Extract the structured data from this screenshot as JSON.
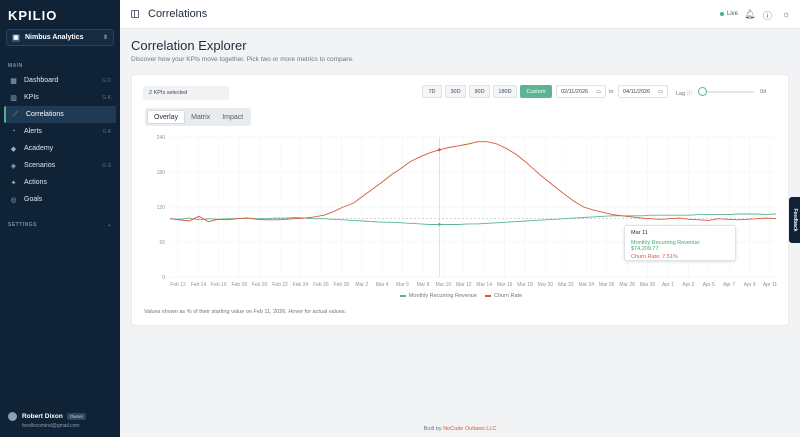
{
  "sidebar": {
    "logo": "KPILIO",
    "org_name": "Nimbus Analytics",
    "main_label": "MAIN",
    "items": [
      {
        "label": "Dashboard",
        "icon": "grid-icon",
        "glyph": "▦",
        "kbd": "G D"
      },
      {
        "label": "KPIs",
        "icon": "bar-chart-icon",
        "glyph": "▥",
        "kbd": "G K"
      },
      {
        "label": "Correlations",
        "icon": "line-chart-icon",
        "glyph": "⟋",
        "kbd": ""
      },
      {
        "label": "Alerts",
        "icon": "bell-icon",
        "glyph": "◔",
        "kbd": "G A"
      },
      {
        "label": "Academy",
        "icon": "graduation-cap-icon",
        "glyph": "◆",
        "kbd": ""
      },
      {
        "label": "Scenarios",
        "icon": "layers-icon",
        "glyph": "◈",
        "kbd": "G S"
      },
      {
        "label": "Actions",
        "icon": "bolt-icon",
        "glyph": "✦",
        "kbd": ""
      },
      {
        "label": "Goals",
        "icon": "target-icon",
        "glyph": "◎",
        "kbd": ""
      }
    ],
    "settings_label": "SETTINGS",
    "user": {
      "name": "Robert Dixon",
      "role": "Owner",
      "email": "feedlocomind@gmail.com"
    }
  },
  "topbar": {
    "title": "Correlations",
    "live": "Live"
  },
  "main": {
    "title": "Correlation Explorer",
    "subtitle": "Discover how your KPIs move together. Pick two or more metrics to compare.",
    "kpi_select": "2 KPIs selected",
    "ranges": [
      "7D",
      "30D",
      "90D",
      "180D",
      "Custom"
    ],
    "active_range": "Custom",
    "date_from": "02/11/2026",
    "to_label": "to",
    "date_to": "04/11/2026",
    "lag_label": "Lag ⓘ",
    "lag_value": "0d",
    "tabs": [
      "Overlay",
      "Matrix",
      "Impact"
    ],
    "footnote": "Values shown as % of their starting value on Feb 11, 2026. Hover for actual values."
  },
  "tooltip": {
    "date": "Mar 11",
    "mrr": "Monthly Recurring Revenue: $74,209.77",
    "churn": "Churn Rate: 7.51%"
  },
  "feedback_label": "Feedback",
  "footer": {
    "prefix": "Built by ",
    "link": "NoCode Outlaws LLC"
  },
  "colors": {
    "mrr": "#5bb592",
    "churn": "#d9583f"
  },
  "chart_data": {
    "type": "line",
    "ylim": [
      0,
      240
    ],
    "yticks": [
      "0",
      "60",
      "120",
      "180",
      "240"
    ],
    "xticks": [
      "Feb 12",
      "Feb 14",
      "Feb 16",
      "Feb 18",
      "Feb 20",
      "Feb 22",
      "Feb 24",
      "Feb 26",
      "Feb 28",
      "Mar 2",
      "Mar 4",
      "Mar 6",
      "Mar 8",
      "Mar 10",
      "Mar 12",
      "Mar 14",
      "Mar 16",
      "Mar 18",
      "Mar 20",
      "Mar 22",
      "Mar 24",
      "Mar 26",
      "Mar 28",
      "Mar 30",
      "Apr 1",
      "Apr 3",
      "Apr 5",
      "Apr 7",
      "Apr 9",
      "Apr 11"
    ],
    "reference_value": 100,
    "hover_index": 28,
    "series": [
      {
        "name": "Monthly Recurring Revenue",
        "values": [
          100,
          99,
          101,
          98,
          100,
          99,
          100,
          100,
          101,
          100,
          100,
          101,
          101,
          102,
          101,
          100,
          100,
          99,
          98,
          97,
          96,
          95,
          94,
          94,
          93,
          92,
          91,
          90,
          90,
          90,
          90,
          91,
          91,
          92,
          93,
          94,
          95,
          96,
          97,
          98,
          99,
          100,
          101,
          102,
          103,
          104,
          105,
          105,
          105,
          105,
          106,
          106,
          106,
          106,
          106,
          107,
          107,
          107,
          107,
          108,
          108,
          108,
          107,
          108
        ]
      },
      {
        "name": "Churn Rate",
        "values": [
          100,
          98,
          96,
          104,
          95,
          99,
          98,
          100,
          101,
          99,
          98,
          98,
          99,
          100,
          101,
          103,
          106,
          112,
          120,
          126,
          138,
          150,
          162,
          175,
          186,
          198,
          206,
          213,
          218,
          222,
          225,
          228,
          232,
          232,
          228,
          220,
          210,
          197,
          182,
          168,
          155,
          142,
          130,
          120,
          115,
          111,
          107,
          105,
          103,
          101,
          100,
          99,
          100,
          101,
          99,
          98,
          97,
          100,
          99,
          98,
          99,
          100,
          101,
          100
        ]
      }
    ]
  }
}
